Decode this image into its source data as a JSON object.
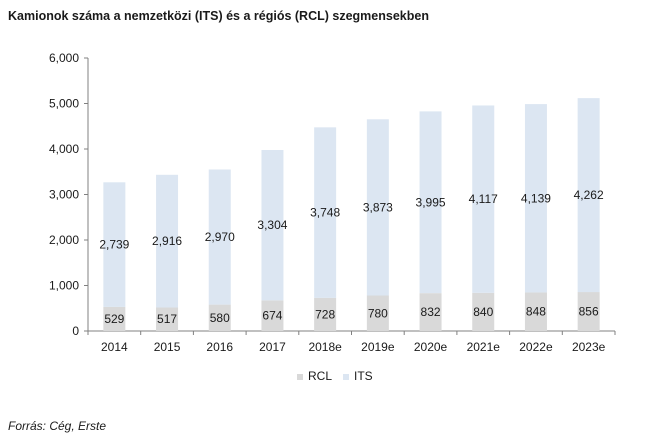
{
  "page": {
    "title": "Kamionok száma a nemzetközi (ITS) és a régiós (RCL) szegmensekben",
    "source": "Forrás: Cég, Erste"
  },
  "chart_data": {
    "type": "bar",
    "stacked": true,
    "title": "Kamionok száma a nemzetközi (ITS) és a régiós (RCL) szegmensekben",
    "categories": [
      "2014",
      "2015",
      "2016",
      "2017",
      "2018e",
      "2019e",
      "2020e",
      "2021e",
      "2022e",
      "2023e"
    ],
    "series": [
      {
        "name": "RCL",
        "color": "#d9d9d9",
        "values": [
          529,
          517,
          580,
          674,
          728,
          780,
          832,
          840,
          848,
          856
        ]
      },
      {
        "name": "ITS",
        "color": "#dce6f2",
        "values": [
          2739,
          2916,
          2970,
          3304,
          3748,
          3873,
          3995,
          4117,
          4139,
          4262
        ]
      }
    ],
    "ylim": [
      0,
      6000
    ],
    "yticks": [
      0,
      1000,
      2000,
      3000,
      4000,
      5000,
      6000
    ],
    "ytick_labels": [
      "0",
      "1,000",
      "2,000",
      "3,000",
      "4,000",
      "5,000",
      "6,000"
    ],
    "data_labels": true,
    "grid": false,
    "legend_position": "bottom"
  }
}
